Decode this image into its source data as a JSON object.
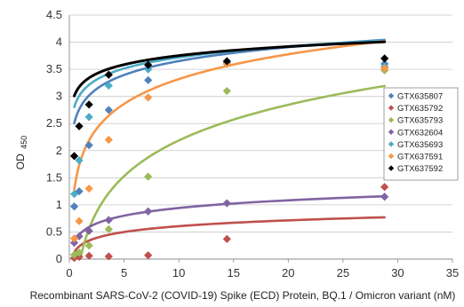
{
  "chart_data": {
    "type": "scatter",
    "xlabel": "Recombinant SARS-CoV-2 (COVID-19) Spike (ECD) Protein, BQ.1 / Omicron variant (nM)",
    "ylabel_main": "OD",
    "ylabel_sub": "450",
    "xlim": [
      0,
      35
    ],
    "ylim": [
      0,
      4.5
    ],
    "x_ticks": [
      "0",
      "5",
      "10",
      "15",
      "20",
      "25",
      "30",
      "35"
    ],
    "y_ticks": [
      "0",
      "0.5",
      "1",
      "1.5",
      "2",
      "2.5",
      "3",
      "3.5",
      "4",
      "4.5"
    ],
    "grid": "horizontal",
    "legend_position": "right",
    "marker": "diamond",
    "series": [
      {
        "name": "GTX635807",
        "color": "#4f81bd",
        "points": [
          [
            0.45,
            0.97
          ],
          [
            0.9,
            1.25
          ],
          [
            1.8,
            2.1
          ],
          [
            3.6,
            2.75
          ],
          [
            7.2,
            3.3
          ],
          [
            14.4,
            3.6
          ],
          [
            28.8,
            3.6
          ]
        ],
        "fit": {
          "a": 2.8,
          "b": 0.37
        }
      },
      {
        "name": "GTX635792",
        "color": "#c0504d",
        "points": [
          [
            0.45,
            0.02
          ],
          [
            0.9,
            0.04
          ],
          [
            1.8,
            0.06
          ],
          [
            3.6,
            0.05
          ],
          [
            7.2,
            0.07
          ],
          [
            14.4,
            0.37
          ],
          [
            28.8,
            1.33
          ]
        ],
        "fit": {
          "a": 0.25,
          "b": 0.155
        }
      },
      {
        "name": "GTX635793",
        "color": "#9bbb59",
        "points": [
          [
            0.45,
            0.08
          ],
          [
            0.9,
            0.12
          ],
          [
            1.8,
            0.25
          ],
          [
            3.6,
            0.55
          ],
          [
            7.2,
            1.52
          ],
          [
            14.4,
            3.1
          ],
          [
            28.8,
            3.48
          ]
        ],
        "fit": {
          "a": 0.0,
          "b": 0.95
        }
      },
      {
        "name": "GTX632604",
        "color": "#8064a2",
        "points": [
          [
            0.45,
            0.3
          ],
          [
            0.9,
            0.42
          ],
          [
            1.8,
            0.52
          ],
          [
            3.6,
            0.72
          ],
          [
            7.2,
            0.88
          ],
          [
            14.4,
            1.03
          ],
          [
            28.8,
            1.15
          ]
        ],
        "fit": {
          "a": 0.47,
          "b": 0.205
        }
      },
      {
        "name": "GTX635693",
        "color": "#4bacc6",
        "points": [
          [
            0.45,
            1.2
          ],
          [
            0.9,
            1.82
          ],
          [
            1.8,
            2.62
          ],
          [
            3.6,
            3.2
          ],
          [
            7.2,
            3.5
          ],
          [
            14.4,
            3.62
          ],
          [
            28.8,
            3.55
          ]
        ],
        "fit": {
          "a": 3.04,
          "b": 0.295
        }
      },
      {
        "name": "GTX637591",
        "color": "#f79646",
        "points": [
          [
            0.45,
            0.38
          ],
          [
            0.9,
            0.7
          ],
          [
            1.8,
            1.3
          ],
          [
            3.6,
            2.2
          ],
          [
            7.2,
            2.98
          ],
          [
            14.4,
            3.6
          ],
          [
            28.8,
            3.52
          ]
        ],
        "fit": {
          "a": 1.8,
          "b": 0.66
        }
      },
      {
        "name": "GTX637592",
        "color": "#000000",
        "points": [
          [
            0.45,
            1.9
          ],
          [
            0.9,
            2.45
          ],
          [
            1.8,
            2.85
          ],
          [
            3.6,
            3.4
          ],
          [
            7.2,
            3.58
          ],
          [
            14.4,
            3.65
          ],
          [
            28.8,
            3.7
          ]
        ],
        "fit": {
          "a": 3.2,
          "b": 0.24
        }
      }
    ]
  }
}
